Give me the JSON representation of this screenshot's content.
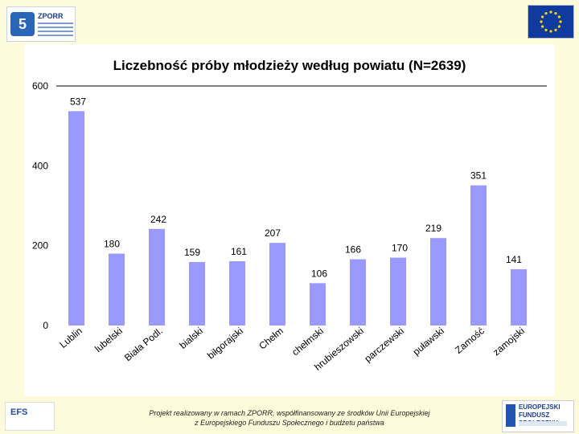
{
  "header": {
    "logo_left": "ZPORR",
    "logo_left_icon": "zporr-logo-icon",
    "logo_right_icon": "eu-flag-icon"
  },
  "chart_data": {
    "type": "bar",
    "title": "Liczebność próby młodzieży według powiatu (N=2639)",
    "categories": [
      "Lublin",
      "lubelski",
      "Biała Podl.",
      "bialski",
      "biłgorajski",
      "Chełm",
      "chełmski",
      "hrubieszowski",
      "parczewski",
      "puławski",
      "Zamość",
      "zamojski"
    ],
    "values": [
      537,
      180,
      242,
      159,
      161,
      207,
      106,
      166,
      170,
      219,
      351,
      141
    ],
    "ylim": [
      0,
      600
    ],
    "yticks": [
      "0",
      "200",
      "400",
      "600"
    ],
    "bar_color": "#9999ff",
    "xlabel": "",
    "ylabel": ""
  },
  "footer": {
    "line1": "Projekt realizowany w ramach ZPORR, współfinansowany ze środków Unii Europejskiej",
    "line2": "z Europejskiego Funduszu Społecznego i budżetu państwa",
    "logo_left": "EFS",
    "logo_right": "EUROPEJSKI FUNDUSZ SPOŁECZNY"
  }
}
